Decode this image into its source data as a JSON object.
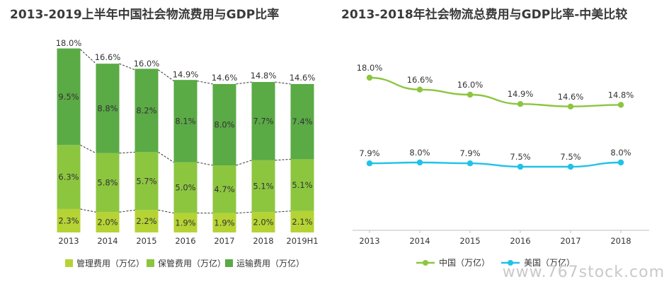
{
  "titles": {
    "left": "2013-2019上半年中国社会物流费用与GDP比率",
    "right": "2013-2018年社会物流总费用与GDP比率-中美比较"
  },
  "watermark": "www.767stock.com",
  "chart_data": [
    {
      "type": "bar",
      "stacked": true,
      "categories": [
        "2013",
        "2014",
        "2015",
        "2016",
        "2017",
        "2018",
        "2019H1"
      ],
      "series": [
        {
          "name": "管理费用（万亿）",
          "color": "#b5d334",
          "values": [
            2.3,
            2.0,
            2.2,
            1.9,
            1.9,
            2.0,
            2.1
          ],
          "labels": [
            "2.3%",
            "2.0%",
            "2.2%",
            "1.9%",
            "1.9%",
            "2.0%",
            "2.1%"
          ]
        },
        {
          "name": "保管费用（万亿）",
          "color": "#8cc63f",
          "values": [
            6.3,
            5.8,
            5.7,
            5.0,
            4.7,
            5.1,
            5.1
          ],
          "labels": [
            "6.3%",
            "5.8%",
            "5.7%",
            "5.0%",
            "4.7%",
            "5.1%",
            "5.1%"
          ]
        },
        {
          "name": "运输费用（万亿）",
          "color": "#5aaa46",
          "values": [
            9.5,
            8.8,
            8.2,
            8.1,
            8.0,
            7.7,
            7.4
          ],
          "labels": [
            "9.5%",
            "8.8%",
            "8.2%",
            "8.1%",
            "8.0%",
            "7.7%",
            "7.4%"
          ]
        }
      ],
      "totals": [
        18.0,
        16.6,
        16.0,
        14.9,
        14.6,
        14.8,
        14.6
      ],
      "total_labels": [
        "18.0%",
        "16.6%",
        "16.0%",
        "14.9%",
        "14.6%",
        "14.8%",
        "14.6%"
      ],
      "ylim": [
        0,
        18.0
      ],
      "legend_position": "bottom"
    },
    {
      "type": "line",
      "x": [
        "2013",
        "2014",
        "2015",
        "2016",
        "2017",
        "2018"
      ],
      "series": [
        {
          "name": "中国（万亿）",
          "color": "#8cc63f",
          "values": [
            18.0,
            16.6,
            16.0,
            14.9,
            14.6,
            14.8
          ],
          "labels": [
            "18.0%",
            "16.6%",
            "16.0%",
            "14.9%",
            "14.6%",
            "14.8%"
          ]
        },
        {
          "name": "美国（万亿）",
          "color": "#1fc2e8",
          "values": [
            7.9,
            8.0,
            7.9,
            7.5,
            7.5,
            8.0
          ],
          "labels": [
            "7.9%",
            "8.0%",
            "7.9%",
            "7.5%",
            "7.5%",
            "8.0%"
          ]
        }
      ],
      "ylim": [
        0,
        20
      ],
      "legend_position": "bottom"
    }
  ]
}
